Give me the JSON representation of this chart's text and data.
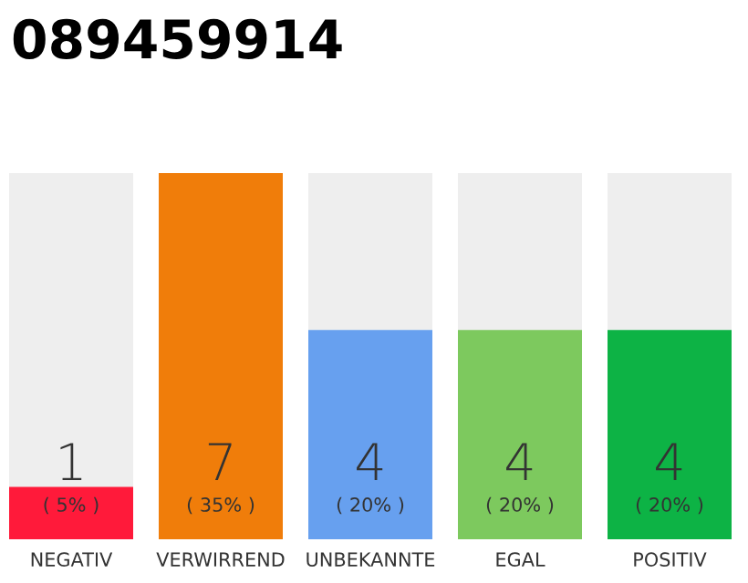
{
  "chart_data": {
    "type": "bar",
    "title": "089459914",
    "categories": [
      "NEGATIV",
      "VERWIRREND",
      "UNBEKANNTE",
      "EGAL",
      "POSITIV"
    ],
    "values": [
      1,
      7,
      4,
      4,
      4
    ],
    "colors": [
      "#ff1a3a",
      "#f07d0a",
      "#67a0ef",
      "#7dc95e",
      "#0db345"
    ],
    "data_labels": true,
    "annotations": [
      "( 5% )",
      "( 35% )",
      "( 20% )",
      "( 20% )",
      "( 20% )"
    ],
    "grid": false,
    "legend": false
  }
}
